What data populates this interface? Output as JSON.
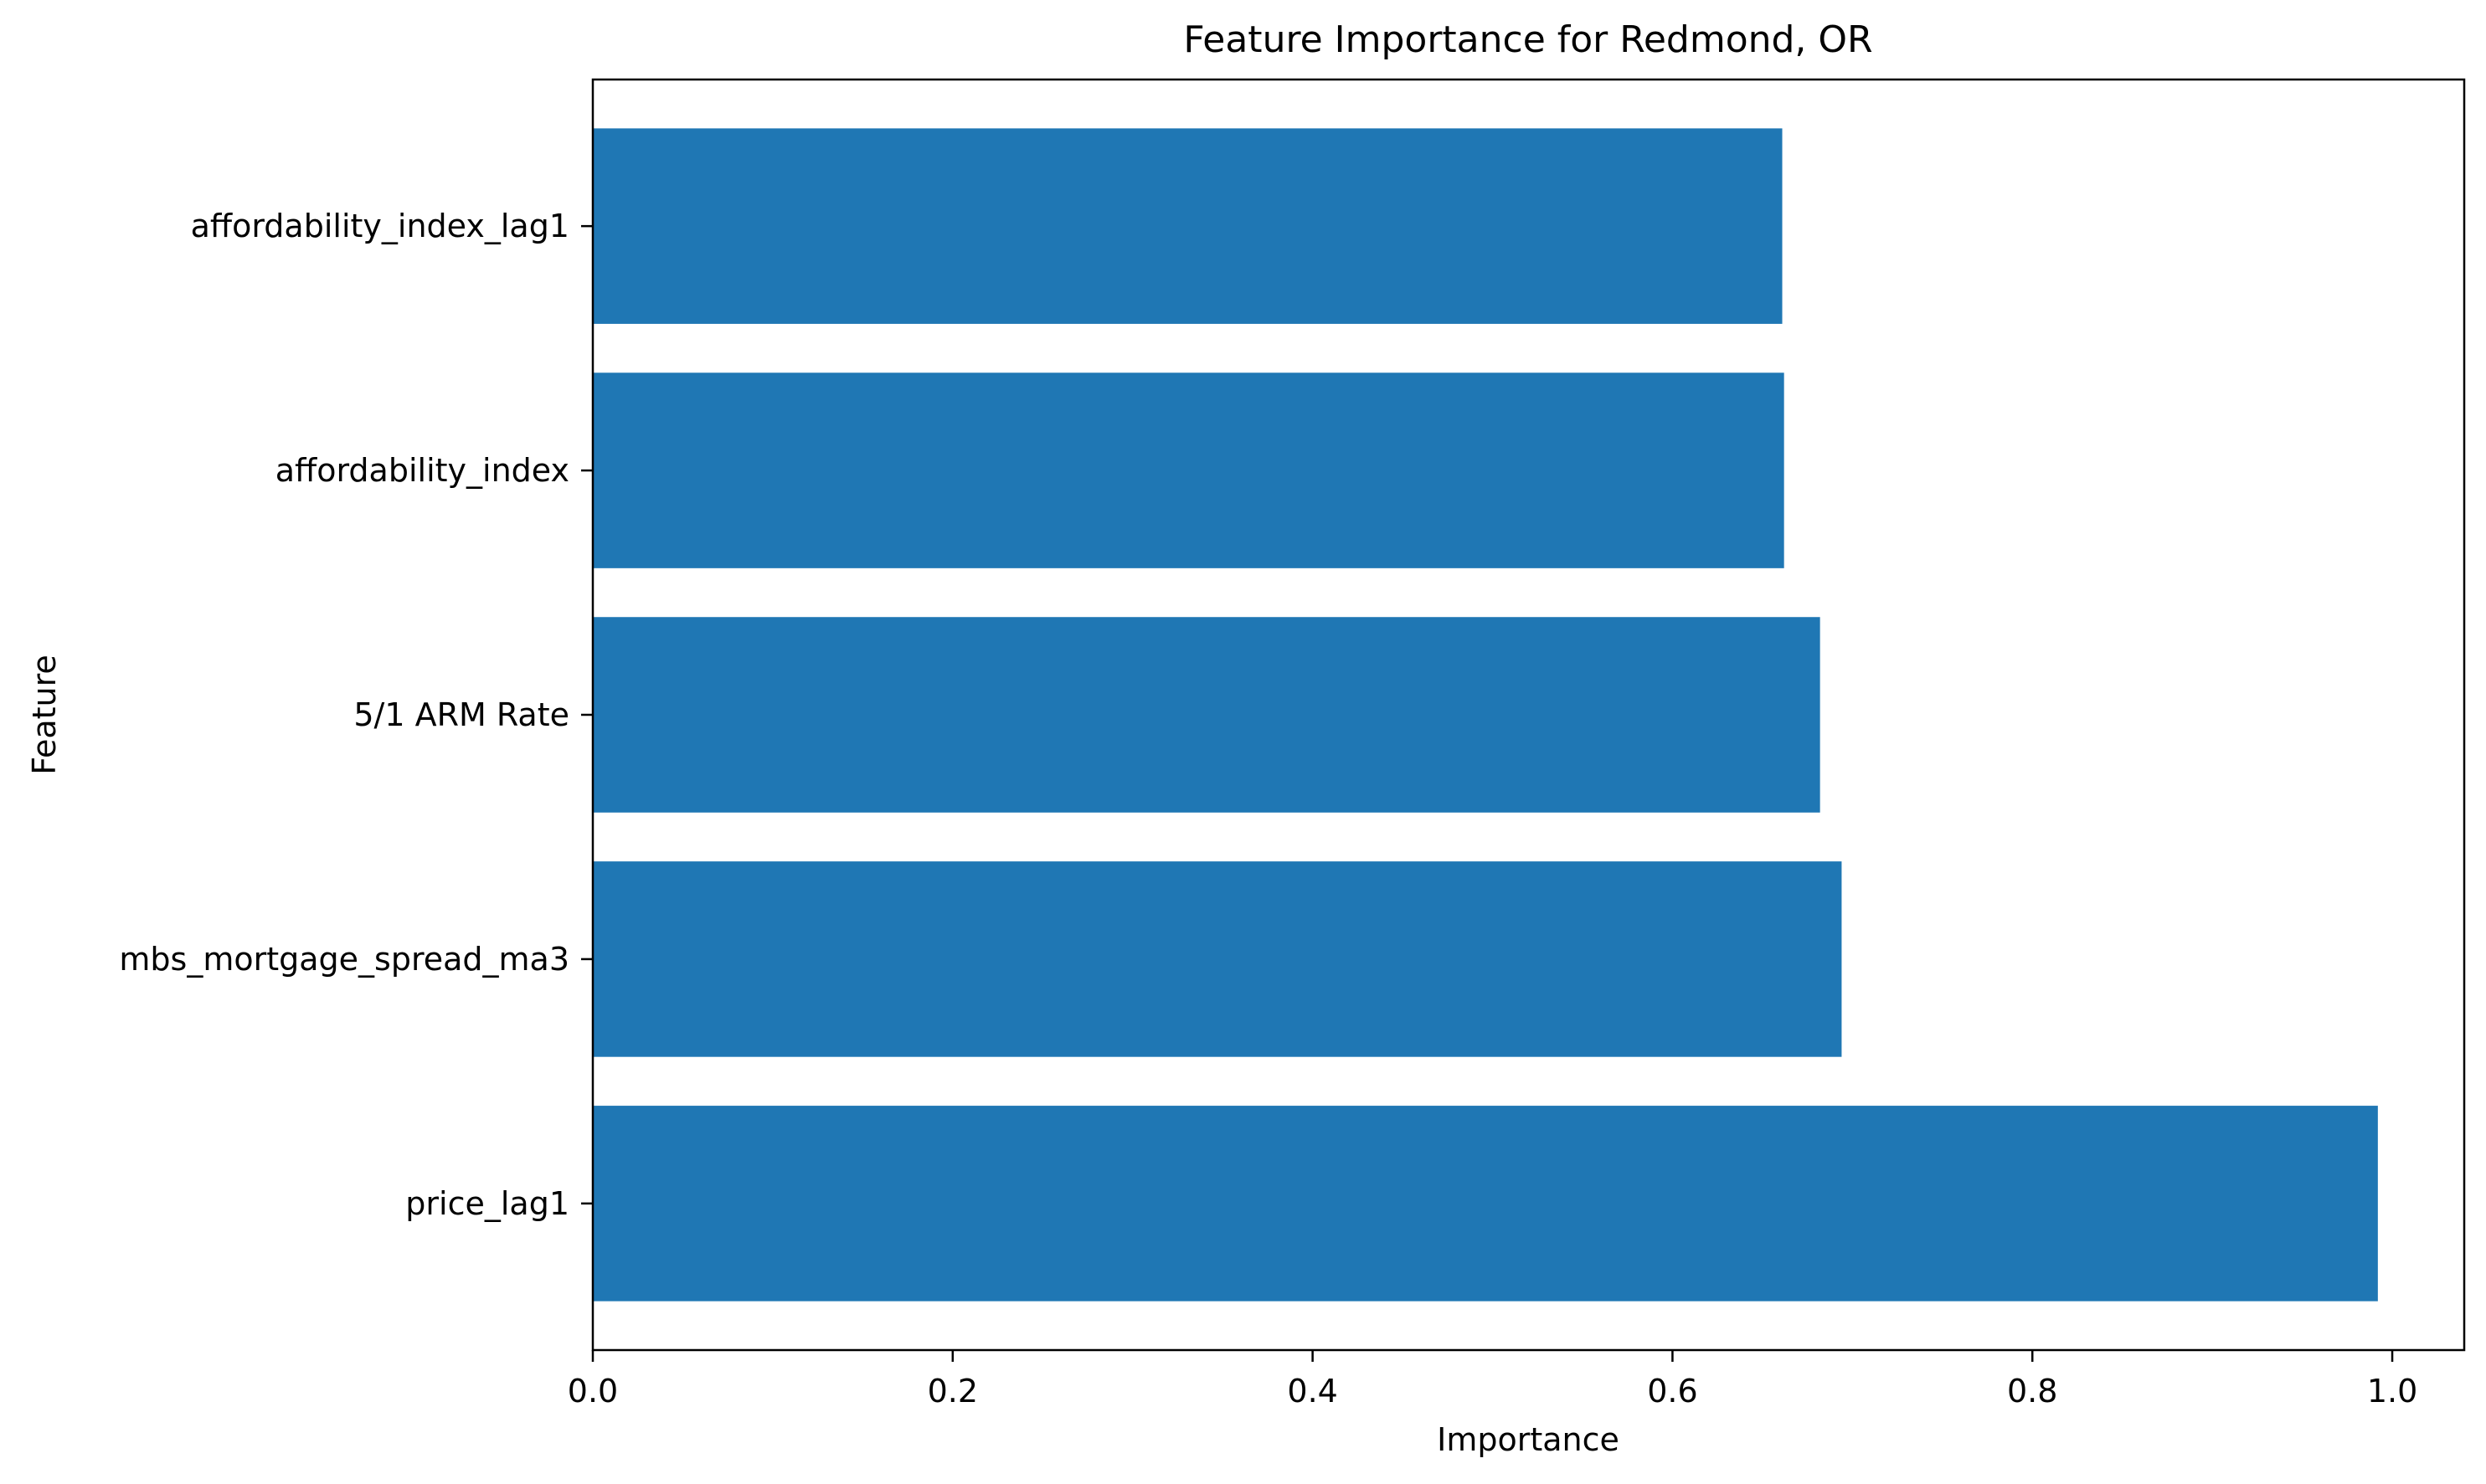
{
  "chart_data": {
    "type": "bar",
    "orientation": "horizontal",
    "title": "Feature Importance for Redmond, OR",
    "xlabel": "Importance",
    "ylabel": "Feature",
    "categories": [
      "price_lag1",
      "mbs_mortgage_spread_ma3",
      "5/1 ARM Rate",
      "affordability_index",
      "affordability_index_lag1"
    ],
    "values": [
      0.992,
      0.694,
      0.682,
      0.662,
      0.661
    ],
    "xlim": [
      0,
      1.04
    ],
    "xticks": [
      0.0,
      0.2,
      0.4,
      0.6,
      0.8,
      1.0
    ],
    "xtick_labels": [
      "0.0",
      "0.2",
      "0.4",
      "0.6",
      "0.8",
      "1.0"
    ],
    "grid": false,
    "legend": "none",
    "bar_color": "#1f77b4"
  }
}
